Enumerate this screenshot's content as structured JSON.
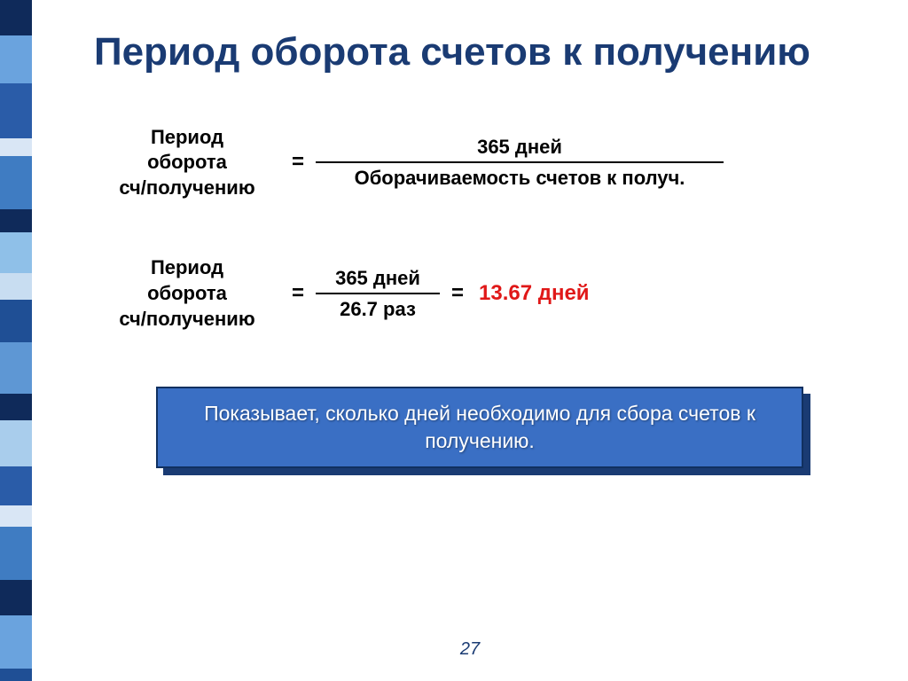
{
  "title": "Период оборота счетов к получению",
  "formula1": {
    "lhs_line1": "Период",
    "lhs_line2": "оборота",
    "lhs_line3": "сч/получению",
    "equals": "=",
    "numerator": "365 дней",
    "denominator": "Оборачиваемость счетов к получ."
  },
  "formula2": {
    "lhs_line1": "Период",
    "lhs_line2": "оборота",
    "lhs_line3": "сч/получению",
    "equals1": "=",
    "numerator": "365 дней",
    "denominator": "26.7 раз",
    "equals2": "=",
    "result": "13.67 дней"
  },
  "callout": "Показывает, сколько дней необходимо для сбора счетов к получению.",
  "page_number": "27",
  "colors": {
    "title": "#1a3b73",
    "text": "#000000",
    "result": "#e01818",
    "callout_bg": "#3a6fc4",
    "callout_border": "#103060",
    "callout_shadow": "#1a3b73",
    "callout_text": "#ffffff",
    "background": "#ffffff"
  },
  "sidebar_stripes": [
    {
      "color": "#0f2a5a",
      "h": 40
    },
    {
      "color": "#6aa3de",
      "h": 54
    },
    {
      "color": "#2a5ca8",
      "h": 62
    },
    {
      "color": "#d9e6f5",
      "h": 20
    },
    {
      "color": "#3f7cc2",
      "h": 60
    },
    {
      "color": "#0f2a5a",
      "h": 26
    },
    {
      "color": "#8fc0e8",
      "h": 46
    },
    {
      "color": "#c8ddf1",
      "h": 30
    },
    {
      "color": "#1f4f95",
      "h": 48
    },
    {
      "color": "#5e97d4",
      "h": 58
    },
    {
      "color": "#0f2a5a",
      "h": 30
    },
    {
      "color": "#a9cdec",
      "h": 52
    },
    {
      "color": "#2a5ca8",
      "h": 44
    },
    {
      "color": "#d9e6f5",
      "h": 24
    },
    {
      "color": "#3f7cc2",
      "h": 60
    },
    {
      "color": "#0f2a5a",
      "h": 40
    },
    {
      "color": "#6aa3de",
      "h": 60
    },
    {
      "color": "#1f4f95",
      "h": 14
    }
  ]
}
